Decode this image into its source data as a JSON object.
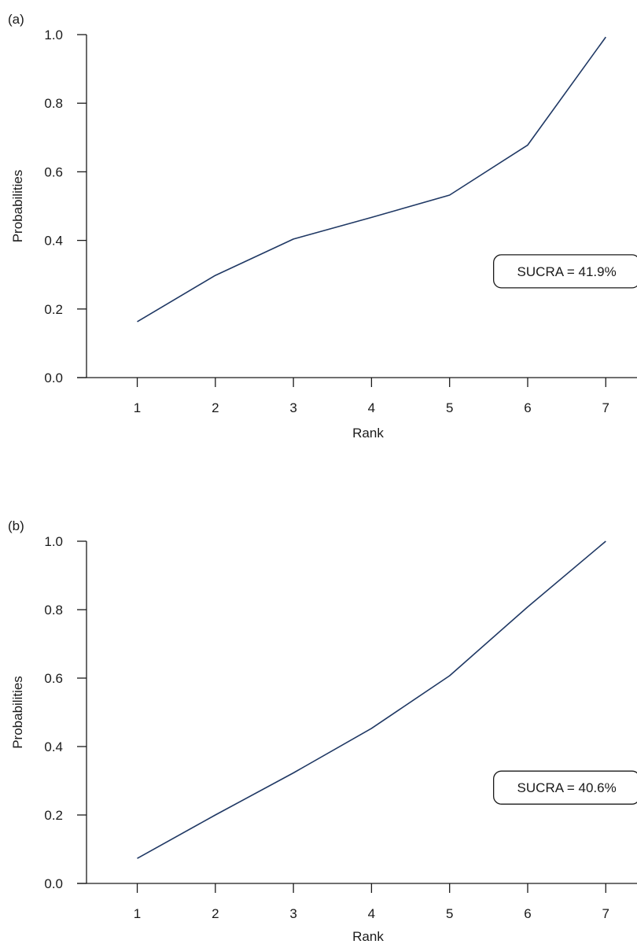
{
  "chart_data": [
    {
      "type": "line",
      "panel_label": "(a)",
      "title": "",
      "xlabel": "Rank",
      "ylabel": "Probabilities",
      "x": [
        1,
        2,
        3,
        4,
        5,
        6,
        7
      ],
      "x_tick_labels": [
        "1",
        "2",
        "3",
        "4",
        "5",
        "6",
        "7"
      ],
      "y_ticks": [
        0.0,
        0.2,
        0.4,
        0.6,
        0.8,
        1.0
      ],
      "y_tick_labels": [
        "0.0",
        "0.2",
        "0.4",
        "0.6",
        "0.8",
        "1.0"
      ],
      "ylim": [
        0.0,
        1.0
      ],
      "xlim": [
        0.35,
        7.4
      ],
      "series": [
        {
          "values": [
            0.163,
            0.298,
            0.404,
            0.467,
            0.532,
            0.678,
            0.993
          ],
          "color": "#1f3864"
        }
      ],
      "annotation": "SUCRA = 41.9%",
      "annotation_anchor": [
        6.5,
        0.31
      ],
      "grid": false,
      "legend": "none"
    },
    {
      "type": "line",
      "panel_label": "(b)",
      "title": "",
      "xlabel": "Rank",
      "ylabel": "Probabilities",
      "x": [
        1,
        2,
        3,
        4,
        5,
        6,
        7
      ],
      "x_tick_labels": [
        "1",
        "2",
        "3",
        "4",
        "5",
        "6",
        "7"
      ],
      "y_ticks": [
        0.0,
        0.2,
        0.4,
        0.6,
        0.8,
        1.0
      ],
      "y_tick_labels": [
        "0.0",
        "0.2",
        "0.4",
        "0.6",
        "0.8",
        "1.0"
      ],
      "ylim": [
        0.0,
        1.0
      ],
      "xlim": [
        0.35,
        7.4
      ],
      "series": [
        {
          "values": [
            0.073,
            0.2,
            0.323,
            0.453,
            0.607,
            0.808,
            1.0
          ],
          "color": "#1f3864"
        }
      ],
      "annotation": "SUCRA = 40.6%",
      "annotation_anchor": [
        6.5,
        0.28
      ],
      "grid": false,
      "legend": "none"
    }
  ]
}
